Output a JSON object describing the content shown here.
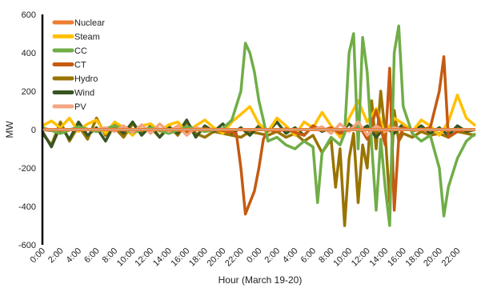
{
  "chart_data": {
    "type": "line",
    "title": "",
    "xlabel": "Hour (March 19-20)",
    "ylabel": "MW",
    "ylim": [
      -600,
      600
    ],
    "y_ticks": [
      -600,
      -400,
      -200,
      0,
      200,
      400,
      600
    ],
    "x_tick_labels": [
      "0:00",
      "2:00",
      "4:00",
      "6:00",
      "8:00",
      "10:00",
      "12:00",
      "14:00",
      "16:00",
      "18:00",
      "20:00",
      "22:00",
      "0:00",
      "2:00",
      "4:00",
      "6:00",
      "8:00",
      "10:00",
      "12:00",
      "14:00",
      "16:00",
      "18:00",
      "20:00",
      "22:00"
    ],
    "x_unit": "hours since 0:00 March 19",
    "xlim": [
      0,
      48
    ],
    "grid": false,
    "legend": "top-left",
    "series": [
      {
        "name": "Nuclear",
        "color": "#ed7d31",
        "points": [
          [
            0,
            0
          ],
          [
            48,
            0
          ]
        ]
      },
      {
        "name": "Steam",
        "color": "#ffc000",
        "points": [
          [
            0,
            20
          ],
          [
            1,
            45
          ],
          [
            2,
            10
          ],
          [
            3,
            60
          ],
          [
            4,
            -10
          ],
          [
            5,
            30
          ],
          [
            6,
            50
          ],
          [
            7,
            -20
          ],
          [
            8,
            40
          ],
          [
            9,
            10
          ],
          [
            10,
            -30
          ],
          [
            11,
            20
          ],
          [
            12,
            30
          ],
          [
            13,
            -10
          ],
          [
            14,
            25
          ],
          [
            15,
            40
          ],
          [
            16,
            -15
          ],
          [
            17,
            20
          ],
          [
            18,
            50
          ],
          [
            19,
            10
          ],
          [
            20,
            -20
          ],
          [
            21,
            40
          ],
          [
            22,
            80
          ],
          [
            23,
            120
          ],
          [
            24,
            30
          ],
          [
            25,
            -10
          ],
          [
            26,
            60
          ],
          [
            27,
            20
          ],
          [
            28,
            -30
          ],
          [
            29,
            40
          ],
          [
            30,
            10
          ],
          [
            31,
            90
          ],
          [
            32,
            20
          ],
          [
            33,
            -40
          ],
          [
            34,
            60
          ],
          [
            35,
            150
          ],
          [
            36,
            40
          ],
          [
            37,
            110
          ],
          [
            38,
            -20
          ],
          [
            39,
            60
          ],
          [
            40,
            30
          ],
          [
            41,
            -10
          ],
          [
            42,
            50
          ],
          [
            43,
            20
          ],
          [
            44,
            -30
          ],
          [
            45,
            40
          ],
          [
            46,
            180
          ],
          [
            47,
            60
          ],
          [
            48,
            20
          ]
        ]
      },
      {
        "name": "CC",
        "color": "#70ad47",
        "points": [
          [
            0,
            10
          ],
          [
            2,
            -20
          ],
          [
            4,
            15
          ],
          [
            6,
            -10
          ],
          [
            8,
            20
          ],
          [
            10,
            -15
          ],
          [
            12,
            10
          ],
          [
            14,
            -20
          ],
          [
            16,
            15
          ],
          [
            18,
            -10
          ],
          [
            20,
            5
          ],
          [
            21,
            50
          ],
          [
            22,
            200
          ],
          [
            22.5,
            450
          ],
          [
            23,
            400
          ],
          [
            23.5,
            300
          ],
          [
            24,
            150
          ],
          [
            24.5,
            50
          ],
          [
            25,
            -60
          ],
          [
            26,
            -40
          ],
          [
            27,
            -80
          ],
          [
            28,
            -100
          ],
          [
            29,
            -60
          ],
          [
            30,
            -90
          ],
          [
            30.5,
            -380
          ],
          [
            31,
            -120
          ],
          [
            32,
            -40
          ],
          [
            33,
            -80
          ],
          [
            33.5,
            -20
          ],
          [
            34,
            400
          ],
          [
            34.5,
            500
          ],
          [
            35,
            -100
          ],
          [
            35.5,
            480
          ],
          [
            36,
            300
          ],
          [
            36.5,
            -80
          ],
          [
            37,
            -420
          ],
          [
            37.5,
            -50
          ],
          [
            38,
            -300
          ],
          [
            38.5,
            -500
          ],
          [
            39,
            400
          ],
          [
            39.5,
            540
          ],
          [
            40,
            120
          ],
          [
            41,
            -20
          ],
          [
            42,
            -60
          ],
          [
            43,
            -30
          ],
          [
            44,
            -200
          ],
          [
            44.5,
            -450
          ],
          [
            45,
            -300
          ],
          [
            46,
            -150
          ],
          [
            47,
            -60
          ],
          [
            48,
            -20
          ]
        ]
      },
      {
        "name": "CT",
        "color": "#c55a11",
        "points": [
          [
            0,
            0
          ],
          [
            2,
            -10
          ],
          [
            4,
            10
          ],
          [
            6,
            -5
          ],
          [
            8,
            5
          ],
          [
            10,
            -10
          ],
          [
            12,
            5
          ],
          [
            14,
            0
          ],
          [
            16,
            -10
          ],
          [
            18,
            5
          ],
          [
            20,
            -5
          ],
          [
            21.5,
            -20
          ],
          [
            22,
            -200
          ],
          [
            22.5,
            -440
          ],
          [
            23,
            -380
          ],
          [
            23.5,
            -320
          ],
          [
            24,
            -200
          ],
          [
            24.5,
            -50
          ],
          [
            25,
            0
          ],
          [
            26,
            -10
          ],
          [
            27,
            5
          ],
          [
            28,
            -15
          ],
          [
            29,
            -30
          ],
          [
            30,
            20
          ],
          [
            31,
            -5
          ],
          [
            32,
            10
          ],
          [
            33,
            -20
          ],
          [
            34,
            0
          ],
          [
            35,
            30
          ],
          [
            36,
            -50
          ],
          [
            37,
            100
          ],
          [
            38,
            -80
          ],
          [
            38.5,
            320
          ],
          [
            39,
            -420
          ],
          [
            39.5,
            -50
          ],
          [
            40,
            10
          ],
          [
            41,
            -5
          ],
          [
            42,
            0
          ],
          [
            43,
            10
          ],
          [
            44,
            200
          ],
          [
            44.5,
            380
          ],
          [
            45,
            -40
          ],
          [
            46,
            -10
          ],
          [
            47,
            0
          ],
          [
            48,
            0
          ]
        ]
      },
      {
        "name": "Hydro",
        "color": "#997300",
        "points": [
          [
            0,
            -20
          ],
          [
            1,
            -80
          ],
          [
            2,
            40
          ],
          [
            3,
            -60
          ],
          [
            4,
            20
          ],
          [
            5,
            -50
          ],
          [
            6,
            60
          ],
          [
            7,
            -30
          ],
          [
            8,
            10
          ],
          [
            9,
            -40
          ],
          [
            10,
            30
          ],
          [
            11,
            -20
          ],
          [
            12,
            10
          ],
          [
            13,
            -40
          ],
          [
            14,
            20
          ],
          [
            15,
            -30
          ],
          [
            16,
            40
          ],
          [
            17,
            -20
          ],
          [
            18,
            -40
          ],
          [
            19,
            -10
          ],
          [
            20,
            -20
          ],
          [
            21,
            -30
          ],
          [
            22,
            -40
          ],
          [
            23,
            -10
          ],
          [
            24,
            -20
          ],
          [
            25,
            -30
          ],
          [
            26,
            -10
          ],
          [
            27,
            -40
          ],
          [
            28,
            -20
          ],
          [
            29,
            -60
          ],
          [
            30,
            -30
          ],
          [
            31,
            -120
          ],
          [
            32,
            -50
          ],
          [
            32.5,
            -300
          ],
          [
            33,
            -100
          ],
          [
            33.5,
            -500
          ],
          [
            34,
            -150
          ],
          [
            34.5,
            -20
          ],
          [
            35,
            -380
          ],
          [
            35.5,
            -80
          ],
          [
            36,
            -200
          ],
          [
            36.5,
            150
          ],
          [
            37,
            -100
          ],
          [
            37.5,
            200
          ],
          [
            38,
            -20
          ],
          [
            38.5,
            -380
          ],
          [
            39,
            100
          ],
          [
            39.5,
            -60
          ],
          [
            40,
            -20
          ],
          [
            41,
            -40
          ],
          [
            42,
            -10
          ],
          [
            43,
            -30
          ],
          [
            44,
            -20
          ],
          [
            45,
            -40
          ],
          [
            46,
            -10
          ],
          [
            47,
            -20
          ],
          [
            48,
            -30
          ]
        ]
      },
      {
        "name": "Wind",
        "color": "#375623",
        "points": [
          [
            0,
            -10
          ],
          [
            1,
            -90
          ],
          [
            2,
            20
          ],
          [
            3,
            -50
          ],
          [
            4,
            40
          ],
          [
            5,
            -30
          ],
          [
            6,
            10
          ],
          [
            7,
            -60
          ],
          [
            8,
            30
          ],
          [
            9,
            -20
          ],
          [
            10,
            40
          ],
          [
            11,
            -30
          ],
          [
            12,
            20
          ],
          [
            13,
            -40
          ],
          [
            14,
            10
          ],
          [
            15,
            -20
          ],
          [
            16,
            50
          ],
          [
            17,
            -40
          ],
          [
            18,
            20
          ],
          [
            19,
            -10
          ],
          [
            20,
            30
          ],
          [
            21,
            -20
          ],
          [
            22,
            10
          ],
          [
            23,
            -30
          ],
          [
            24,
            20
          ],
          [
            25,
            -10
          ],
          [
            26,
            40
          ],
          [
            27,
            -20
          ],
          [
            28,
            10
          ],
          [
            29,
            -30
          ],
          [
            30,
            20
          ],
          [
            31,
            -10
          ],
          [
            32,
            10
          ],
          [
            33,
            -20
          ],
          [
            34,
            30
          ],
          [
            35,
            -10
          ],
          [
            36,
            20
          ],
          [
            37,
            -40
          ],
          [
            38,
            10
          ],
          [
            39,
            -20
          ],
          [
            40,
            30
          ],
          [
            41,
            -10
          ],
          [
            42,
            20
          ],
          [
            43,
            -20
          ],
          [
            44,
            10
          ],
          [
            45,
            -30
          ],
          [
            46,
            20
          ],
          [
            47,
            -10
          ],
          [
            48,
            0
          ]
        ]
      },
      {
        "name": "PV",
        "color": "#f4a582",
        "points": [
          [
            0,
            0
          ],
          [
            6,
            0
          ],
          [
            7,
            10
          ],
          [
            8,
            -10
          ],
          [
            9,
            20
          ],
          [
            10,
            -15
          ],
          [
            11,
            25
          ],
          [
            12,
            -20
          ],
          [
            13,
            30
          ],
          [
            14,
            -10
          ],
          [
            15,
            20
          ],
          [
            16,
            -30
          ],
          [
            17,
            10
          ],
          [
            18,
            0
          ],
          [
            30,
            0
          ],
          [
            31,
            15
          ],
          [
            32,
            -20
          ],
          [
            33,
            30
          ],
          [
            34,
            -10
          ],
          [
            35,
            40
          ],
          [
            36,
            -30
          ],
          [
            37,
            20
          ],
          [
            38,
            -10
          ],
          [
            39,
            10
          ],
          [
            40,
            0
          ],
          [
            48,
            0
          ]
        ]
      }
    ]
  }
}
